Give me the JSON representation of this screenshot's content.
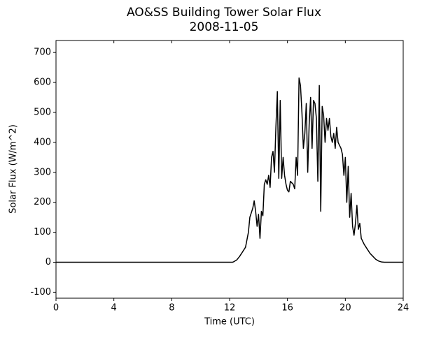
{
  "chart_data": {
    "type": "line",
    "title": "AO&SS Building Tower Solar Flux",
    "subtitle": "2008-11-05",
    "x_label": "Time (UTC)",
    "y_label": "Solar Flux (W/m^2)",
    "color": "#000000",
    "x": [
      0,
      12.2,
      12.3,
      12.5,
      12.7,
      12.9,
      13.1,
      13.3,
      13.4,
      13.6,
      13.7,
      13.8,
      13.9,
      14.0,
      14.1,
      14.2,
      14.3,
      14.4,
      14.5,
      14.6,
      14.7,
      14.8,
      14.9,
      15.0,
      15.1,
      15.2,
      15.3,
      15.4,
      15.5,
      15.6,
      15.7,
      15.8,
      15.9,
      16.0,
      16.1,
      16.2,
      16.4,
      16.5,
      16.6,
      16.7,
      16.8,
      16.9,
      17.0,
      17.1,
      17.2,
      17.3,
      17.4,
      17.5,
      17.6,
      17.7,
      17.8,
      17.9,
      18.0,
      18.1,
      18.2,
      18.3,
      18.4,
      18.5,
      18.6,
      18.7,
      18.8,
      18.9,
      19.0,
      19.1,
      19.2,
      19.3,
      19.4,
      19.5,
      19.6,
      19.7,
      19.8,
      19.9,
      20.0,
      20.1,
      20.2,
      20.3,
      20.4,
      20.5,
      20.6,
      20.7,
      20.8,
      20.9,
      21.0,
      21.1,
      21.3,
      21.5,
      21.7,
      21.9,
      22.1,
      22.3,
      22.5,
      22.7,
      24
    ],
    "values": [
      0,
      0,
      2,
      8,
      20,
      35,
      50,
      100,
      150,
      180,
      205,
      170,
      120,
      160,
      80,
      170,
      155,
      260,
      275,
      260,
      290,
      250,
      350,
      370,
      300,
      450,
      570,
      280,
      540,
      280,
      350,
      290,
      260,
      240,
      235,
      270,
      260,
      245,
      350,
      290,
      615,
      590,
      500,
      380,
      430,
      530,
      300,
      460,
      550,
      380,
      540,
      530,
      480,
      270,
      590,
      170,
      520,
      490,
      400,
      480,
      440,
      480,
      420,
      400,
      430,
      380,
      450,
      400,
      390,
      380,
      360,
      290,
      350,
      200,
      320,
      150,
      230,
      120,
      90,
      130,
      190,
      110,
      130,
      80,
      60,
      45,
      30,
      20,
      10,
      4,
      1,
      0,
      0
    ],
    "xlim": [
      0,
      24
    ],
    "xticks": [
      0,
      4,
      8,
      12,
      16,
      20,
      24
    ],
    "ylim": [
      -120,
      740
    ],
    "yticks": [
      -100,
      0,
      100,
      200,
      300,
      400,
      500,
      600,
      700
    ]
  }
}
